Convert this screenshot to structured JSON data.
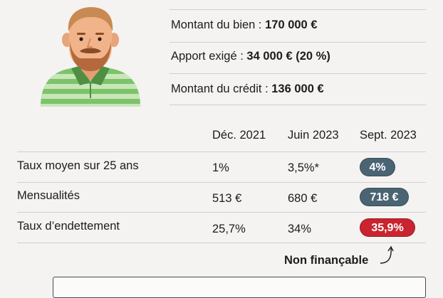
{
  "info": {
    "lines": [
      {
        "label": "Montant du bien : ",
        "value": "170 000 €"
      },
      {
        "label": "Apport exigé : ",
        "value": "34 000 € (20 %)"
      },
      {
        "label": "Montant du crédit : ",
        "value": "136 000 €"
      }
    ]
  },
  "table": {
    "columns": [
      "Déc. 2021",
      "Juin 2023",
      "Sept. 2023"
    ],
    "rows": [
      {
        "label": "Taux moyen sur 25 ans",
        "dec2021": "1%",
        "juin2023": "3,5%*",
        "sept2023": "4%"
      },
      {
        "label": "Mensualités",
        "dec2021": "513 €",
        "juin2023": "680 €",
        "sept2023": "718 €"
      },
      {
        "label": "Taux d’endettement",
        "dec2021": "25,7%",
        "juin2023": "34%",
        "sept2023": "35,9%"
      }
    ]
  },
  "note": "Non finançable",
  "colors": {
    "pill_slate": "#4b6473",
    "pill_red": "#c9242f",
    "shirt_green": "#7cc36a",
    "shirt_stripe": "#c9e6b8",
    "skin": "#f1b48a",
    "beard": "#b5683b",
    "hair": "#c88a52"
  },
  "icons": {
    "avatar": "bearded-man-avatar",
    "arrow": "curved-arrow-icon"
  }
}
